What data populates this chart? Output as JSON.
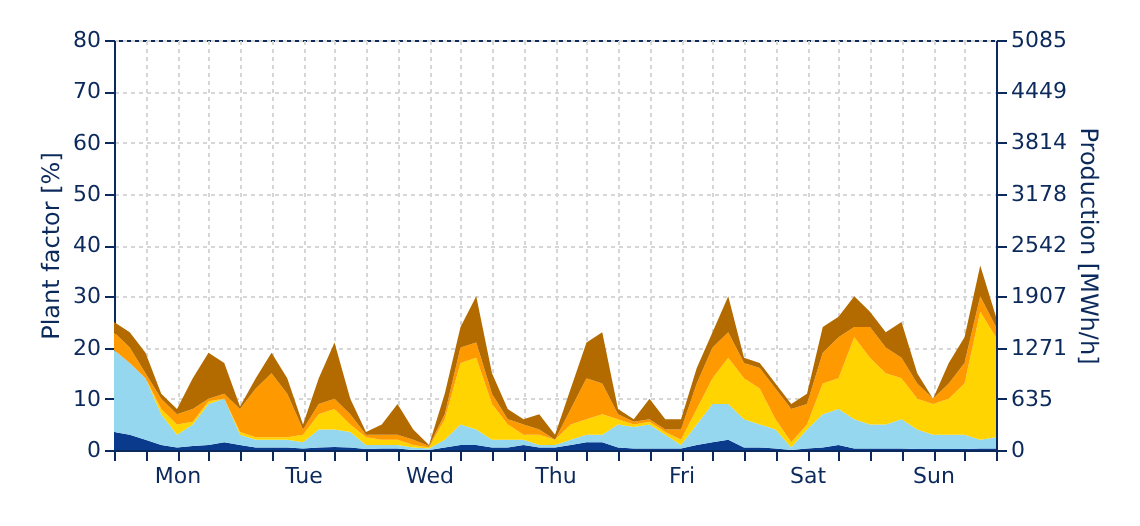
{
  "chart_data": {
    "type": "area",
    "stacked": true,
    "ylabel": "Plant factor [%]",
    "y2label": "Production [MWh/h]",
    "categories": [
      null,
      null,
      null,
      null,
      "Mon",
      null,
      null,
      null,
      null,
      null,
      null,
      null,
      "Tue",
      null,
      null,
      null,
      null,
      null,
      null,
      null,
      "Wed",
      null,
      null,
      null,
      null,
      null,
      null,
      null,
      "Thu",
      null,
      null,
      null,
      null,
      null,
      null,
      null,
      "Fri",
      null,
      null,
      null,
      null,
      null,
      null,
      null,
      "Sat",
      null,
      null,
      null,
      null,
      null,
      null,
      null,
      "Sun",
      null,
      null,
      null,
      null
    ],
    "ylim": [
      0,
      80
    ],
    "yticks": [
      0,
      10,
      20,
      30,
      40,
      50,
      60,
      70,
      80
    ],
    "y2lim": [
      0,
      5085
    ],
    "y2ticks": [
      0,
      635,
      1271,
      1907,
      2542,
      3178,
      3814,
      4449,
      5085
    ],
    "grid": true,
    "legend": false,
    "series": [
      {
        "color": "#0a3a8c",
        "values": [
          3.5,
          3,
          2,
          1,
          0.5,
          0.8,
          1,
          1.5,
          1,
          0.5,
          0.5,
          0.5,
          0.3,
          0.5,
          0.6,
          0.5,
          0.2,
          0.3,
          0.3,
          0,
          0,
          0.5,
          1,
          1,
          0.5,
          0.5,
          1,
          0.5,
          0.5,
          1,
          1.5,
          1.5,
          0.5,
          0.3,
          0.3,
          0.3,
          0.3,
          1,
          1.5,
          2,
          0.5,
          0.5,
          0.3,
          0,
          0.3,
          0.5,
          1,
          0.3,
          0.3,
          0.3,
          0.3,
          0.2,
          0.2,
          0.2,
          0.2,
          0.3,
          0.3
        ]
      },
      {
        "color": "#96d7f0",
        "values": [
          16,
          14,
          12,
          6,
          2.5,
          4.2,
          8,
          8.5,
          2,
          1.5,
          1.5,
          1.5,
          1.2,
          3.5,
          3.4,
          3,
          0.8,
          0.7,
          0.7,
          0.5,
          0.3,
          1.5,
          4,
          3,
          1.5,
          1.5,
          1,
          0.5,
          0.5,
          1,
          1.5,
          1.5,
          4.5,
          4.2,
          4.7,
          2.7,
          0.7,
          4,
          7.5,
          7,
          5.5,
          4.5,
          3.7,
          0.5,
          3.7,
          6.5,
          7,
          5.7,
          4.7,
          4.7,
          5.7,
          3.8,
          2.8,
          2.8,
          2.8,
          1.7,
          2.2
        ]
      },
      {
        "color": "#ffd400",
        "values": [
          0,
          0,
          0,
          1,
          2,
          0.5,
          0.5,
          0,
          0.5,
          0.5,
          0.5,
          0.5,
          1.5,
          3,
          4,
          1.5,
          1.5,
          1,
          1,
          0.5,
          0.2,
          4,
          12,
          14,
          7,
          3,
          1,
          2,
          1,
          3,
          3,
          4,
          1,
          0.5,
          0.5,
          0.5,
          1,
          3,
          5,
          9,
          8,
          7,
          2,
          1,
          1,
          6,
          6,
          16,
          13,
          10,
          8,
          6,
          6,
          7,
          10,
          25,
          19.5
        ]
      },
      {
        "color": "#ff9900",
        "values": [
          3.5,
          3,
          1,
          2,
          2,
          2.5,
          0.5,
          1,
          4.5,
          9.5,
          12.5,
          8.5,
          1,
          2,
          2,
          2,
          0.5,
          1,
          1,
          1,
          0.3,
          1,
          3,
          3,
          2,
          1,
          2,
          1,
          0,
          3,
          8,
          6,
          1,
          0.5,
          0.5,
          0.5,
          2,
          5,
          6,
          5,
          3,
          4,
          6,
          6.5,
          4,
          6,
          8,
          2,
          6,
          5,
          4,
          3,
          1,
          3,
          4,
          3,
          2
        ]
      },
      {
        "color": "#b36b00",
        "values": [
          2,
          3,
          4,
          1,
          1,
          6,
          9,
          6,
          0.5,
          2,
          4,
          3,
          1,
          5,
          11,
          3,
          0.5,
          2,
          6,
          2,
          0.2,
          4,
          4,
          9,
          4,
          2,
          1,
          3,
          1,
          4,
          7,
          10,
          1,
          0.5,
          4,
          2,
          2,
          3,
          3,
          7,
          1,
          1,
          1,
          1,
          2,
          5,
          4,
          6,
          3,
          3,
          7,
          2,
          0,
          4,
          5,
          6,
          2
        ]
      }
    ]
  }
}
